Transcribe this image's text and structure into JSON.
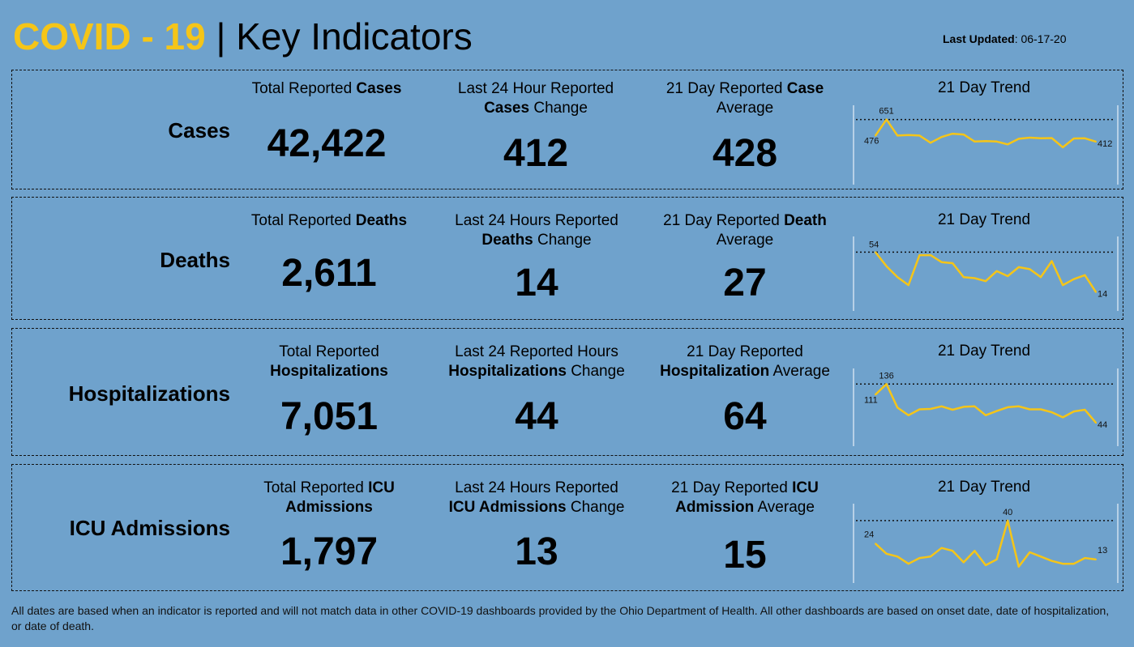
{
  "header": {
    "covid": "COVID - 19",
    "separator": " | ",
    "title": "Key Indicators",
    "updated_label": "Last Updated",
    "updated_value": ": 06-17-20"
  },
  "colors": {
    "background": "#6fa2cc",
    "accent": "#f5c518",
    "line": "#f5c518"
  },
  "rows": [
    {
      "label": "Cases",
      "total_header_pre": "Total Reported ",
      "total_header_bold": "Cases",
      "total_header_post": "",
      "total_value": "42,422",
      "change_header_pre": "Last 24 Hour Reported",
      "change_header_bold": "Cases",
      "change_header_post": " Change",
      "change_value": "412",
      "avg_header_pre": "21 Day Reported ",
      "avg_header_bold": "Case",
      "avg_header_post": "Average",
      "avg_value": "428",
      "trend_title": "21 Day Trend"
    },
    {
      "label": "Deaths",
      "total_header_pre": "Total Reported ",
      "total_header_bold": "Deaths",
      "total_header_post": "",
      "total_value": "2,611",
      "change_header_pre": "Last 24 Hours Reported",
      "change_header_bold": "Deaths",
      "change_header_post": " Change",
      "change_value": "14",
      "avg_header_pre": "21 Day Reported ",
      "avg_header_bold": "Death",
      "avg_header_post": "Average",
      "avg_value": "27",
      "trend_title": "21 Day Trend"
    },
    {
      "label": "Hospitalizations",
      "total_header_pre": "Total Reported",
      "total_header_bold": "Hospitalizations",
      "total_header_post": "",
      "total_value": "7,051",
      "change_header_pre": "Last 24 Reported Hours",
      "change_header_bold": "Hospitalizations",
      "change_header_post": " Change",
      "change_value": "44",
      "avg_header_pre": "21 Day Reported",
      "avg_header_bold": "Hospitalization",
      "avg_header_post": " Average",
      "avg_value": "64",
      "trend_title": "21 Day Trend"
    },
    {
      "label": "ICU Admissions",
      "total_header_pre": "Total Reported ",
      "total_header_bold": "ICU",
      "total_header_bold2": "Admissions",
      "total_value": "1,797",
      "change_header_pre": "Last 24 Hours Reported",
      "change_header_bold": "ICU Admissions",
      "change_header_post": " Change",
      "change_value": "13",
      "avg_header_pre": "21 Day Reported ",
      "avg_header_bold": "ICU",
      "avg_header_bold2": "Admission",
      "avg_header_post": " Average",
      "avg_value": "15",
      "trend_title": "21 Day Trend"
    }
  ],
  "chart_data": [
    {
      "type": "line",
      "series": [
        {
          "values": [
            476,
            651,
            478,
            483,
            478,
            400,
            462,
            498,
            489,
            413,
            418,
            413,
            382,
            443,
            455,
            448,
            451,
            351,
            446,
            448,
            412
          ]
        }
      ],
      "ylim": [
        0,
        700
      ],
      "reference_line": 651,
      "labels": {
        "first": "476",
        "max": "651",
        "last": "412"
      }
    },
    {
      "type": "line",
      "series": [
        {
          "values": [
            54,
            40,
            29,
            21,
            51,
            51,
            44,
            43,
            29,
            28,
            25,
            35,
            30,
            39,
            37,
            29,
            45,
            21,
            27,
            31,
            14
          ]
        }
      ],
      "ylim": [
        0,
        60
      ],
      "reference_line": 54,
      "labels": {
        "first": "54",
        "last": "14"
      }
    },
    {
      "type": "line",
      "series": [
        {
          "values": [
            111,
            136,
            80,
            62,
            76,
            77,
            83,
            75,
            82,
            83,
            62,
            72,
            81,
            83,
            76,
            76,
            69,
            57,
            71,
            75,
            44
          ]
        }
      ],
      "ylim": [
        0,
        150
      ],
      "reference_line": 136,
      "labels": {
        "first": "111",
        "max": "136",
        "last": "44"
      }
    },
    {
      "type": "line",
      "series": [
        {
          "values": [
            24,
            17,
            15,
            10,
            14,
            15,
            21,
            19,
            11,
            19,
            9,
            13,
            40,
            8,
            18,
            15,
            12,
            10,
            10,
            14,
            13
          ]
        }
      ],
      "ylim": [
        0,
        45
      ],
      "reference_line": 40,
      "labels": {
        "first": "24",
        "max": "40",
        "last": "13"
      }
    }
  ],
  "footer": "All dates are based when an indicator is reported and will not match data in other COVID-19 dashboards provided by the Ohio Department of Health. All other dashboards are based on onset date, date of hospitalization, or date of death."
}
